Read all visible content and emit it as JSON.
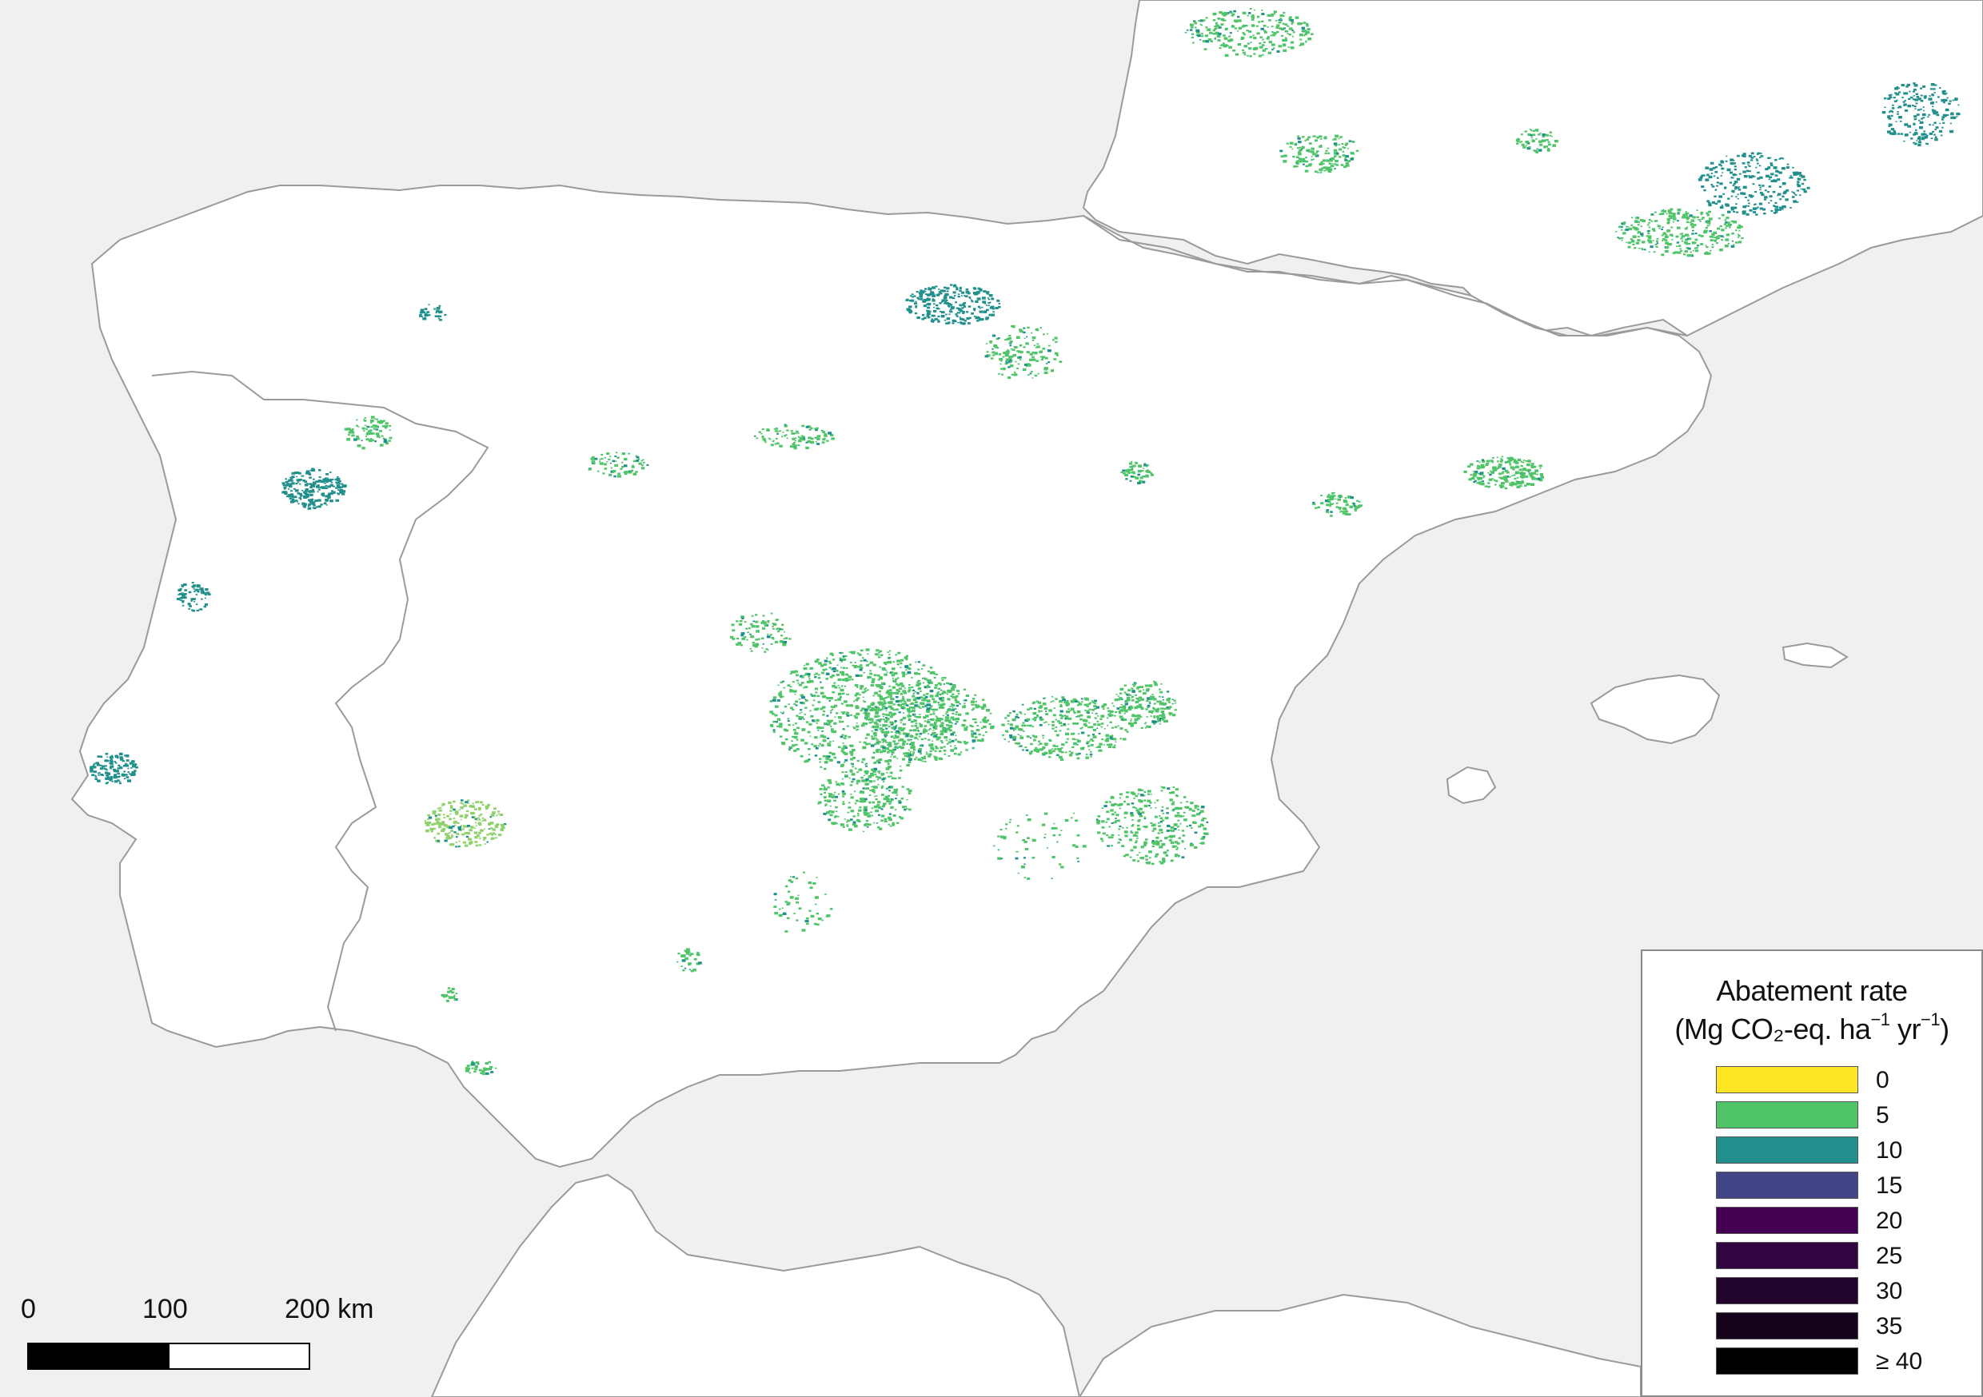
{
  "legend": {
    "title_line1": "Abatement rate",
    "title_prefix": "(Mg CO₂-eq. ha",
    "title_exp1": "−1",
    "title_mid": " yr",
    "title_exp2": "−1",
    "title_suffix": ")",
    "classes": [
      {
        "label": "0",
        "color": "#fde725"
      },
      {
        "label": "5",
        "color": "#50c469"
      },
      {
        "label": "10",
        "color": "#21908c"
      },
      {
        "label": "15",
        "color": "#414487"
      },
      {
        "label": "20",
        "color": "#440154"
      },
      {
        "label": "25",
        "color": "#31053f"
      },
      {
        "label": "30",
        "color": "#21032b"
      },
      {
        "label": "35",
        "color": "#15021b"
      },
      {
        "label": "≥ 40",
        "color": "#000000"
      }
    ]
  },
  "scalebar": {
    "label_0": "0",
    "label_100": "100",
    "label_200": "200 km"
  },
  "colors": {
    "sea": "#f0f0f0",
    "land": "#ffffff",
    "coast": "#9a9a9a",
    "green": "#50c469",
    "teal": "#21908c",
    "lightgreen": "#8fd16b"
  }
}
